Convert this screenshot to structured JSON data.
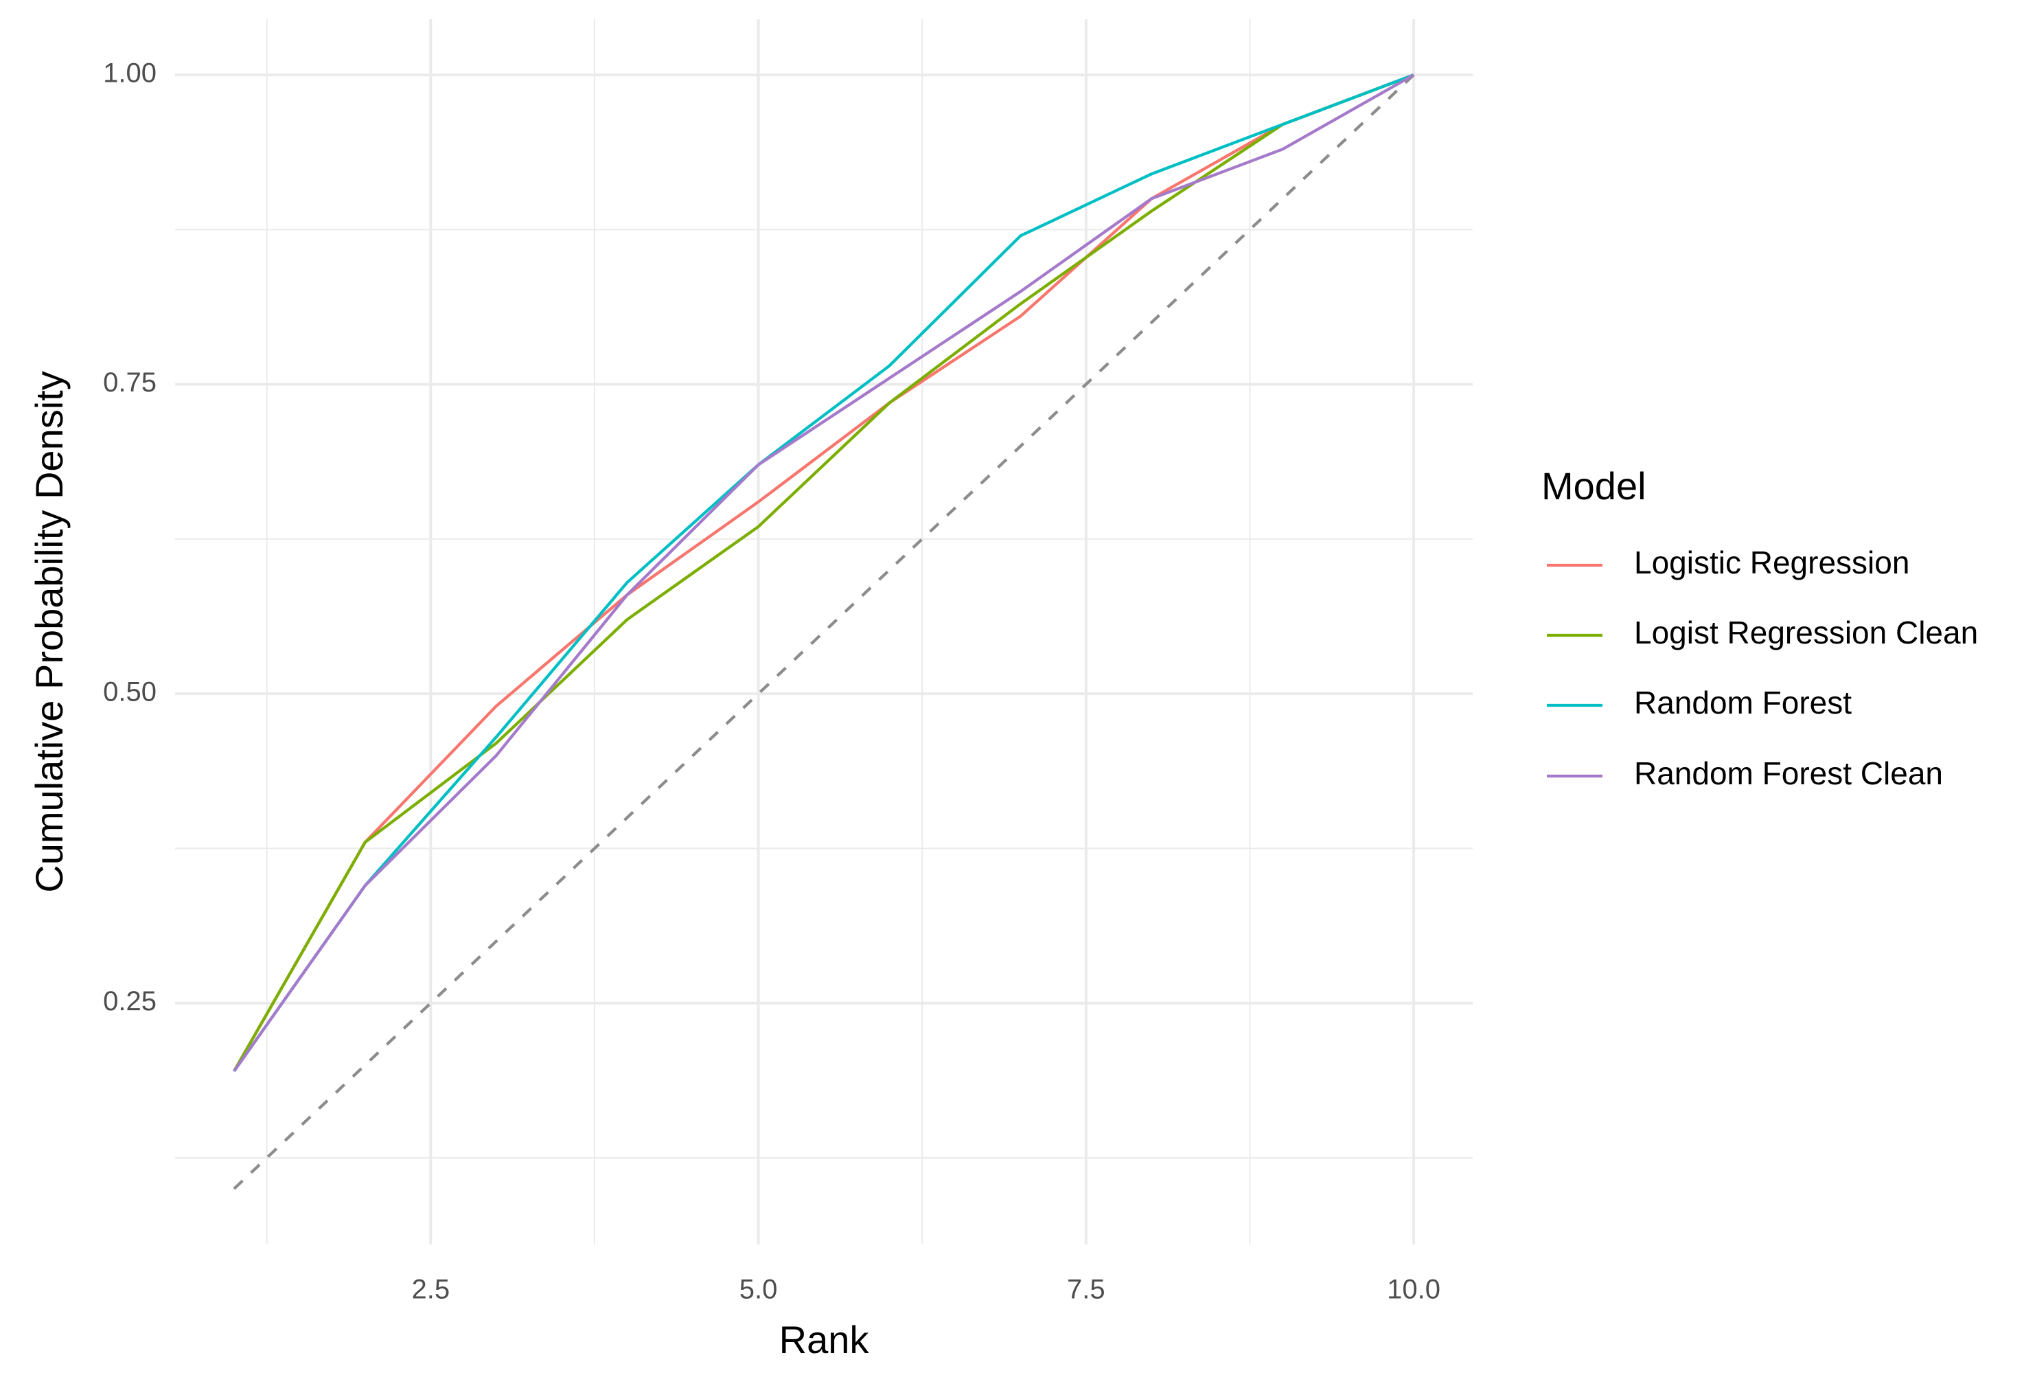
{
  "chart_data": {
    "type": "line",
    "x_label": "Rank",
    "y_label": "Cumulative Probability Density",
    "legend_title": "Model",
    "legend_position": "right",
    "grid": true,
    "x": [
      1,
      2,
      3,
      4,
      5,
      6,
      7,
      8,
      9,
      10
    ],
    "series": [
      {
        "name": "Logistic Regression",
        "color": "#F8766D",
        "values": [
          0.195,
          0.38,
          0.49,
          0.58,
          0.655,
          0.735,
          0.805,
          0.9,
          0.96,
          1.0
        ]
      },
      {
        "name": "Logist Regression Clean",
        "color": "#7CAE00",
        "values": [
          0.195,
          0.38,
          0.46,
          0.56,
          0.635,
          0.735,
          0.815,
          0.89,
          0.96,
          1.0
        ]
      },
      {
        "name": "Random Forest",
        "color": "#00BFC4",
        "values": [
          0.195,
          0.345,
          0.465,
          0.59,
          0.685,
          0.765,
          0.87,
          0.92,
          0.96,
          1.0
        ]
      },
      {
        "name": "Random Forest Clean",
        "color": "#A57ACB",
        "values": [
          0.195,
          0.345,
          0.45,
          0.58,
          0.685,
          0.755,
          0.825,
          0.9,
          0.94,
          1.0
        ]
      }
    ],
    "reference_line": {
      "x": [
        1,
        10
      ],
      "y": [
        0.1,
        1.0
      ],
      "color": "#8c8c8c",
      "dashed": true
    },
    "xlim": [
      0.55,
      10.45
    ],
    "ylim": [
      0.055,
      1.045
    ],
    "xticks": [
      2.5,
      {
        "value": 5,
        "label": "5.0"
      },
      7.5,
      {
        "value": 10,
        "label": "10.0"
      }
    ],
    "yticks": [
      {
        "value": 0.25,
        "label": "0.25"
      },
      {
        "value": 0.5,
        "label": "0.50"
      },
      {
        "value": 0.75,
        "label": "0.75"
      },
      {
        "value": 1,
        "label": "1.00"
      }
    ],
    "xminorticks": [
      1.25,
      3.75,
      6.25,
      8.75
    ],
    "yminorticks": [
      0.125,
      0.375,
      0.625,
      0.875
    ]
  }
}
